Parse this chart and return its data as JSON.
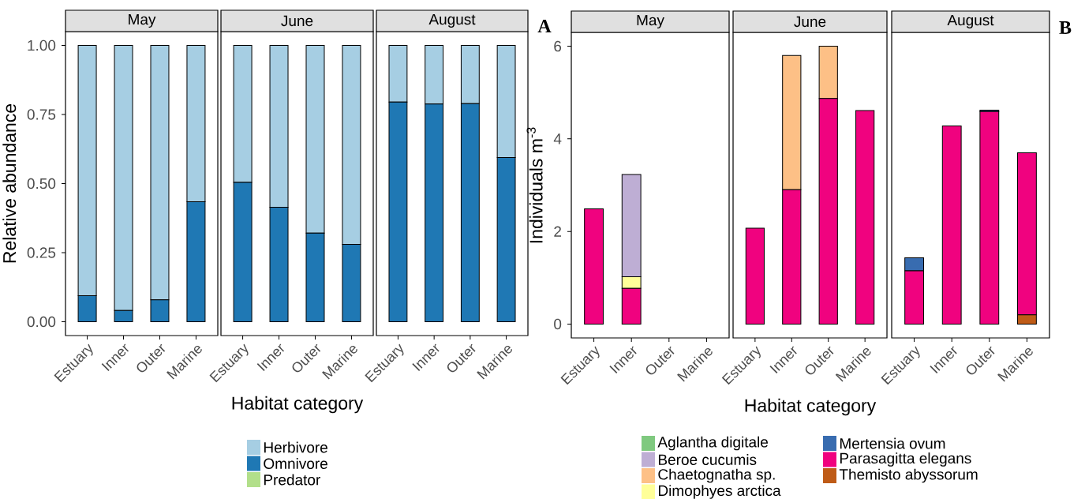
{
  "chart_data": [
    {
      "type": "bar",
      "title": "May",
      "ylabel": "Relative abundance",
      "categories": [
        "Estuary",
        "Inner",
        "Outer",
        "Marine"
      ],
      "stacked": true,
      "legend": "bottom",
      "ylim": [
        -0.05,
        1.05
      ],
      "yticks": [
        {
          "value": 0,
          "label": "0.00"
        },
        {
          "value": 0.25,
          "label": "0.25"
        },
        {
          "value": 0.5,
          "label": "0.50"
        },
        {
          "value": 0.75,
          "label": "0.75"
        },
        {
          "value": 1,
          "label": "1.00"
        }
      ],
      "series": [
        {
          "name": "Predator",
          "color": "#b2df8a",
          "values": [
            0,
            0,
            0,
            0
          ]
        },
        {
          "name": "Omnivore",
          "color": "#1f78b4",
          "values": [
            0.094,
            0.041,
            0.079,
            0.434
          ]
        },
        {
          "name": "Herbivore",
          "color": "#a6cee3",
          "values": [
            0.906,
            0.959,
            0.921,
            0.566
          ]
        }
      ]
    },
    {
      "type": "bar",
      "title": "June",
      "xlabel": "Habitat category",
      "categories": [
        "Estuary",
        "Inner",
        "Outer",
        "Marine"
      ],
      "stacked": true,
      "tick_labels": "x",
      "ylim": [
        -0.05,
        1.05
      ],
      "series": [
        {
          "color": "#b2df8a",
          "values": [
            0,
            0,
            0,
            0
          ]
        },
        {
          "color": "#1f78b4",
          "values": [
            0.504,
            0.414,
            0.321,
            0.28
          ]
        },
        {
          "color": "#a6cee3",
          "values": [
            0.496,
            0.586,
            0.679,
            0.72
          ]
        }
      ]
    },
    {
      "type": "bar",
      "title": "August",
      "categories": [
        "Estuary",
        "Inner",
        "Outer",
        "Marine"
      ],
      "stacked": true,
      "tick_labels": "x",
      "ylim": [
        -0.05,
        1.05
      ],
      "annotations": [
        "A"
      ],
      "series": [
        {
          "color": "#b2df8a",
          "values": [
            0,
            0,
            0,
            0
          ]
        },
        {
          "color": "#1f78b4",
          "values": [
            0.795,
            0.788,
            0.789,
            0.594
          ]
        },
        {
          "color": "#a6cee3",
          "values": [
            0.205,
            0.212,
            0.211,
            0.406
          ]
        }
      ]
    },
    {
      "type": "bar",
      "title": "May",
      "ylabel": "Individuals m$^{-3}$",
      "categories": [
        "Estuary",
        "Inner",
        "Outer",
        "Marine"
      ],
      "stacked": true,
      "legend": "bottom",
      "ylim": [
        -0.3,
        6.3
      ],
      "yticks": [
        0,
        2,
        4,
        6
      ],
      "series": [
        {
          "name": "Themisto abyssorum",
          "color": "#bf5b17",
          "values": [
            0,
            0,
            0,
            0
          ]
        },
        {
          "name": "Parasagitta elegans",
          "color": "#f0027f",
          "values": [
            2.49,
            0.77,
            0,
            0
          ]
        },
        {
          "name": "Mertensia ovum",
          "color": "#386cb0",
          "values": [
            0,
            0,
            0,
            0
          ]
        },
        {
          "name": "Dimophyes arctica",
          "color": "#ffff99",
          "values": [
            0,
            0.25,
            0,
            0
          ]
        },
        {
          "name": "Chaetognatha sp.",
          "color": "#fdc086",
          "values": [
            0,
            0,
            0,
            0
          ]
        },
        {
          "name": "Beroe cucumis",
          "color": "#beaed4",
          "values": [
            0,
            2.21,
            0,
            0
          ]
        },
        {
          "name": "Aglantha digitale",
          "color": "#7fc97f",
          "values": [
            0,
            0,
            0,
            0
          ]
        }
      ]
    },
    {
      "type": "bar",
      "title": "June",
      "xlabel": "Habitat category",
      "categories": [
        "Estuary",
        "Inner",
        "Outer",
        "Marine"
      ],
      "stacked": true,
      "tick_labels": "x",
      "ylim": [
        -0.3,
        6.3
      ],
      "series": [
        {
          "color": "#bf5b17",
          "values": [
            0,
            0,
            0,
            0
          ]
        },
        {
          "color": "#f0027f",
          "values": [
            2.07,
            2.9,
            4.87,
            4.61
          ]
        },
        {
          "color": "#386cb0",
          "values": [
            0,
            0,
            0,
            0
          ]
        },
        {
          "color": "#ffff99",
          "values": [
            0,
            0,
            0,
            0
          ]
        },
        {
          "color": "#fdc086",
          "values": [
            0,
            2.9,
            1.13,
            0
          ]
        },
        {
          "color": "#beaed4",
          "values": [
            0,
            0,
            0,
            0
          ]
        },
        {
          "color": "#7fc97f",
          "values": [
            0,
            0,
            0,
            0
          ]
        }
      ]
    },
    {
      "type": "bar",
      "title": "August",
      "categories": [
        "Estuary",
        "Inner",
        "Outer",
        "Marine"
      ],
      "stacked": true,
      "tick_labels": "x",
      "ylim": [
        -0.3,
        6.3
      ],
      "annotations": [
        "B"
      ],
      "series": [
        {
          "color": "#bf5b17",
          "values": [
            0,
            0,
            0,
            0.2
          ]
        },
        {
          "color": "#f0027f",
          "values": [
            1.15,
            4.28,
            4.59,
            3.5
          ]
        },
        {
          "color": "#386cb0",
          "values": [
            0.28,
            0,
            0.03,
            0
          ]
        },
        {
          "color": "#ffff99",
          "values": [
            0,
            0,
            0,
            0
          ]
        },
        {
          "color": "#fdc086",
          "values": [
            0,
            0,
            0,
            0
          ]
        },
        {
          "color": "#beaed4",
          "values": [
            0,
            0,
            0,
            0
          ]
        },
        {
          "color": "#7fc97f",
          "values": [
            0,
            0,
            0,
            0
          ]
        }
      ]
    }
  ]
}
